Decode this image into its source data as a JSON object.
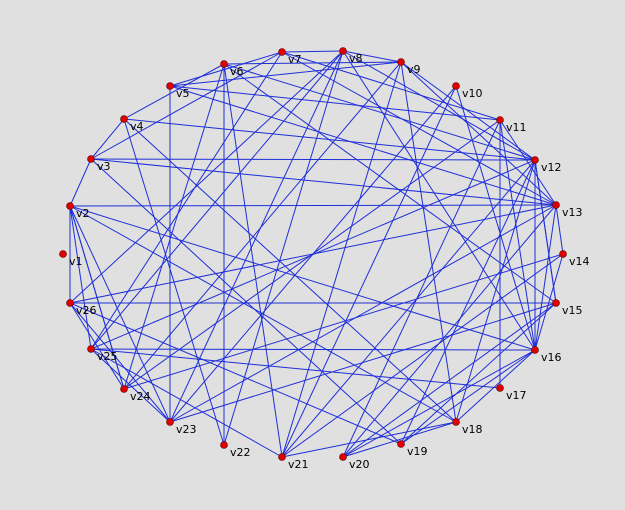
{
  "graph": {
    "edge_color": "#1f2fd8",
    "vertex_color": "#e00000",
    "background": "#e0e0e0",
    "vertices": [
      {
        "id": "v1",
        "label": "v1"
      },
      {
        "id": "v2",
        "label": "v2"
      },
      {
        "id": "v3",
        "label": "v3"
      },
      {
        "id": "v4",
        "label": "v4"
      },
      {
        "id": "v5",
        "label": "v5"
      },
      {
        "id": "v6",
        "label": "v6"
      },
      {
        "id": "v7",
        "label": "v7"
      },
      {
        "id": "v8",
        "label": "v8"
      },
      {
        "id": "v9",
        "label": "v9"
      },
      {
        "id": "v10",
        "label": "v10"
      },
      {
        "id": "v11",
        "label": "v11"
      },
      {
        "id": "v12",
        "label": "v12"
      },
      {
        "id": "v13",
        "label": "v13"
      },
      {
        "id": "v14",
        "label": "v14"
      },
      {
        "id": "v15",
        "label": "v15"
      },
      {
        "id": "v16",
        "label": "v16"
      },
      {
        "id": "v17",
        "label": "v17"
      },
      {
        "id": "v18",
        "label": "v18"
      },
      {
        "id": "v19",
        "label": "v19"
      },
      {
        "id": "v20",
        "label": "v20"
      },
      {
        "id": "v21",
        "label": "v21"
      },
      {
        "id": "v22",
        "label": "v22"
      },
      {
        "id": "v23",
        "label": "v23"
      },
      {
        "id": "v24",
        "label": "v24"
      },
      {
        "id": "v25",
        "label": "v25"
      },
      {
        "id": "v26",
        "label": "v26"
      }
    ],
    "edges": [
      [
        "v1",
        "v1"
      ],
      [
        "v2",
        "v3"
      ],
      [
        "v2",
        "v13"
      ],
      [
        "v2",
        "v16"
      ],
      [
        "v2",
        "v24"
      ],
      [
        "v2",
        "v23"
      ],
      [
        "v3",
        "v7"
      ],
      [
        "v3",
        "v13"
      ],
      [
        "v3",
        "v4"
      ],
      [
        "v4",
        "v6"
      ],
      [
        "v4",
        "v12"
      ],
      [
        "v4",
        "v22"
      ],
      [
        "v4",
        "v18"
      ],
      [
        "v5",
        "v9"
      ],
      [
        "v5",
        "v13"
      ],
      [
        "v5",
        "v7"
      ],
      [
        "v5",
        "v23"
      ],
      [
        "v5",
        "v11"
      ],
      [
        "v6",
        "v9"
      ],
      [
        "v6",
        "v15"
      ],
      [
        "v6",
        "v24"
      ],
      [
        "v6",
        "v21"
      ],
      [
        "v6",
        "v22"
      ],
      [
        "v6",
        "v12"
      ],
      [
        "v7",
        "v8"
      ],
      [
        "v7",
        "v11"
      ],
      [
        "v7",
        "v13"
      ],
      [
        "v7",
        "v25"
      ],
      [
        "v8",
        "v9"
      ],
      [
        "v8",
        "v16"
      ],
      [
        "v8",
        "v23"
      ],
      [
        "v8",
        "v25"
      ],
      [
        "v8",
        "v26"
      ],
      [
        "v8",
        "v12"
      ],
      [
        "v9",
        "v13"
      ],
      [
        "v9",
        "v21"
      ],
      [
        "v9",
        "v18"
      ],
      [
        "v9",
        "v12"
      ],
      [
        "v9",
        "v24"
      ],
      [
        "v10",
        "v23"
      ],
      [
        "v10",
        "v16"
      ],
      [
        "v10",
        "v21"
      ],
      [
        "v11",
        "v13"
      ],
      [
        "v11",
        "v20"
      ],
      [
        "v11",
        "v24"
      ],
      [
        "v11",
        "v16"
      ],
      [
        "v11",
        "v17"
      ],
      [
        "v12",
        "v3"
      ],
      [
        "v12",
        "v15"
      ],
      [
        "v12",
        "v18"
      ],
      [
        "v12",
        "v21"
      ],
      [
        "v12",
        "v19"
      ],
      [
        "v12",
        "v25"
      ],
      [
        "v13",
        "v26"
      ],
      [
        "v13",
        "v14"
      ],
      [
        "v13",
        "v23"
      ],
      [
        "v13",
        "v16"
      ],
      [
        "v13",
        "v20"
      ],
      [
        "v14",
        "v21"
      ],
      [
        "v14",
        "v24"
      ],
      [
        "v14",
        "v16"
      ],
      [
        "v15",
        "v26"
      ],
      [
        "v15",
        "v23"
      ],
      [
        "v15",
        "v20"
      ],
      [
        "v15",
        "v19"
      ],
      [
        "v15",
        "v12"
      ],
      [
        "v16",
        "v25"
      ],
      [
        "v16",
        "v18"
      ],
      [
        "v16",
        "v20"
      ],
      [
        "v16",
        "v19"
      ],
      [
        "v16",
        "v12"
      ],
      [
        "v17",
        "v25"
      ],
      [
        "v18",
        "v20"
      ],
      [
        "v18",
        "v21"
      ],
      [
        "v18",
        "v2"
      ],
      [
        "v19",
        "v26"
      ],
      [
        "v19",
        "v3"
      ],
      [
        "v21",
        "v25"
      ],
      [
        "v22",
        "v8"
      ],
      [
        "v23",
        "v26"
      ],
      [
        "v23",
        "v25"
      ],
      [
        "v24",
        "v2"
      ],
      [
        "v24",
        "v26"
      ],
      [
        "v25",
        "v2"
      ],
      [
        "v26",
        "v2"
      ]
    ]
  }
}
